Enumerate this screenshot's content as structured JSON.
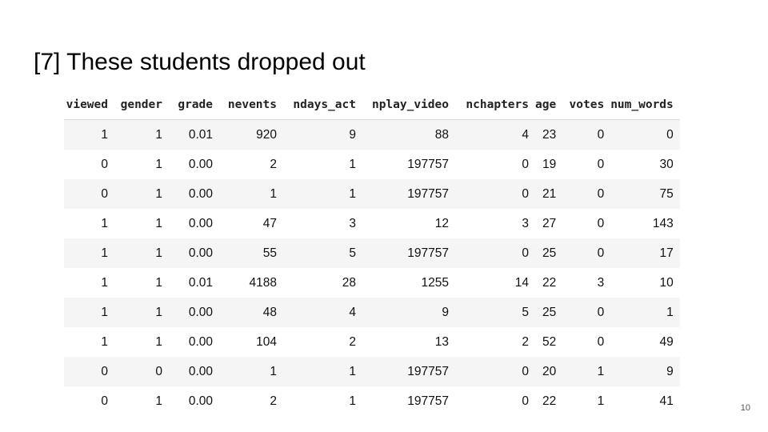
{
  "slide": {
    "title": "[7] These students dropped out",
    "page_number": "10"
  },
  "table": {
    "columns": [
      "viewed",
      "gender",
      "grade",
      "nevents",
      "ndays_act",
      "nplay_video",
      "nchapters",
      "age",
      "votes",
      "num_words"
    ],
    "rows": [
      [
        "1",
        "1",
        "0.01",
        "920",
        "9",
        "88",
        "4",
        "23",
        "0",
        "0"
      ],
      [
        "0",
        "1",
        "0.00",
        "2",
        "1",
        "197757",
        "0",
        "19",
        "0",
        "30"
      ],
      [
        "0",
        "1",
        "0.00",
        "1",
        "1",
        "197757",
        "0",
        "21",
        "0",
        "75"
      ],
      [
        "1",
        "1",
        "0.00",
        "47",
        "3",
        "12",
        "3",
        "27",
        "0",
        "143"
      ],
      [
        "1",
        "1",
        "0.00",
        "55",
        "5",
        "197757",
        "0",
        "25",
        "0",
        "17"
      ],
      [
        "1",
        "1",
        "0.01",
        "4188",
        "28",
        "1255",
        "14",
        "22",
        "3",
        "10"
      ],
      [
        "1",
        "1",
        "0.00",
        "48",
        "4",
        "9",
        "5",
        "25",
        "0",
        "1"
      ],
      [
        "1",
        "1",
        "0.00",
        "104",
        "2",
        "13",
        "2",
        "52",
        "0",
        "49"
      ],
      [
        "0",
        "0",
        "0.00",
        "1",
        "1",
        "197757",
        "0",
        "20",
        "1",
        "9"
      ],
      [
        "0",
        "1",
        "0.00",
        "2",
        "1",
        "197757",
        "0",
        "22",
        "1",
        "41"
      ]
    ]
  }
}
